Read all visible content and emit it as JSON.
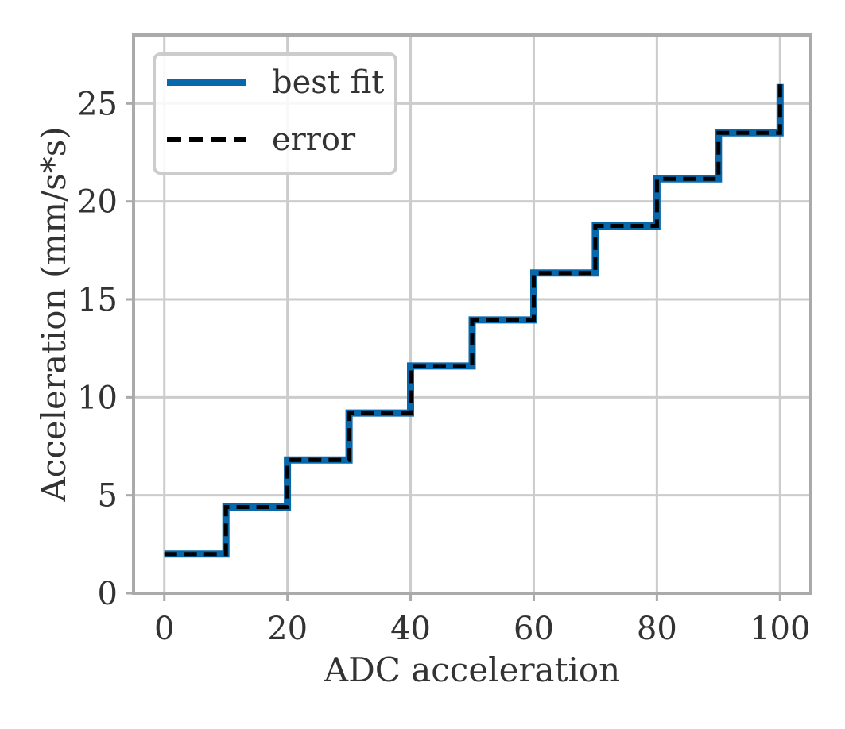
{
  "chart_data": {
    "type": "line",
    "xlabel": "ADC acceleration",
    "ylabel": "Acceleration (mm/s*s)",
    "xlim": [
      -5,
      105
    ],
    "ylim": [
      0,
      28.5
    ],
    "xticks": [
      0,
      20,
      40,
      60,
      80,
      100
    ],
    "yticks": [
      0,
      5,
      10,
      15,
      20,
      25
    ],
    "grid": true,
    "legend_position": "top-left",
    "series": [
      {
        "name": "best fit",
        "style": "solid",
        "color": "#0868ac",
        "x": [
          0,
          10,
          10,
          20,
          20,
          30,
          30,
          40,
          40,
          50,
          50,
          60,
          60,
          70,
          70,
          80,
          80,
          90,
          90,
          100,
          100
        ],
        "y": [
          2.0,
          2.0,
          4.4,
          4.4,
          6.8,
          6.8,
          9.2,
          9.2,
          11.6,
          11.6,
          13.95,
          13.95,
          16.35,
          16.35,
          18.75,
          18.75,
          21.15,
          21.15,
          23.5,
          23.5,
          26.0
        ]
      },
      {
        "name": "error",
        "style": "dashed",
        "color": "#000000",
        "x": [
          0,
          10,
          10,
          20,
          20,
          30,
          30,
          40,
          40,
          50,
          50,
          60,
          60,
          70,
          70,
          80,
          80,
          90,
          90,
          100,
          100
        ],
        "y": [
          2.0,
          2.0,
          4.4,
          4.4,
          6.8,
          6.8,
          9.2,
          9.2,
          11.6,
          11.6,
          13.95,
          13.95,
          16.35,
          16.35,
          18.75,
          18.75,
          21.15,
          21.15,
          23.5,
          23.5,
          26.0
        ]
      }
    ]
  }
}
